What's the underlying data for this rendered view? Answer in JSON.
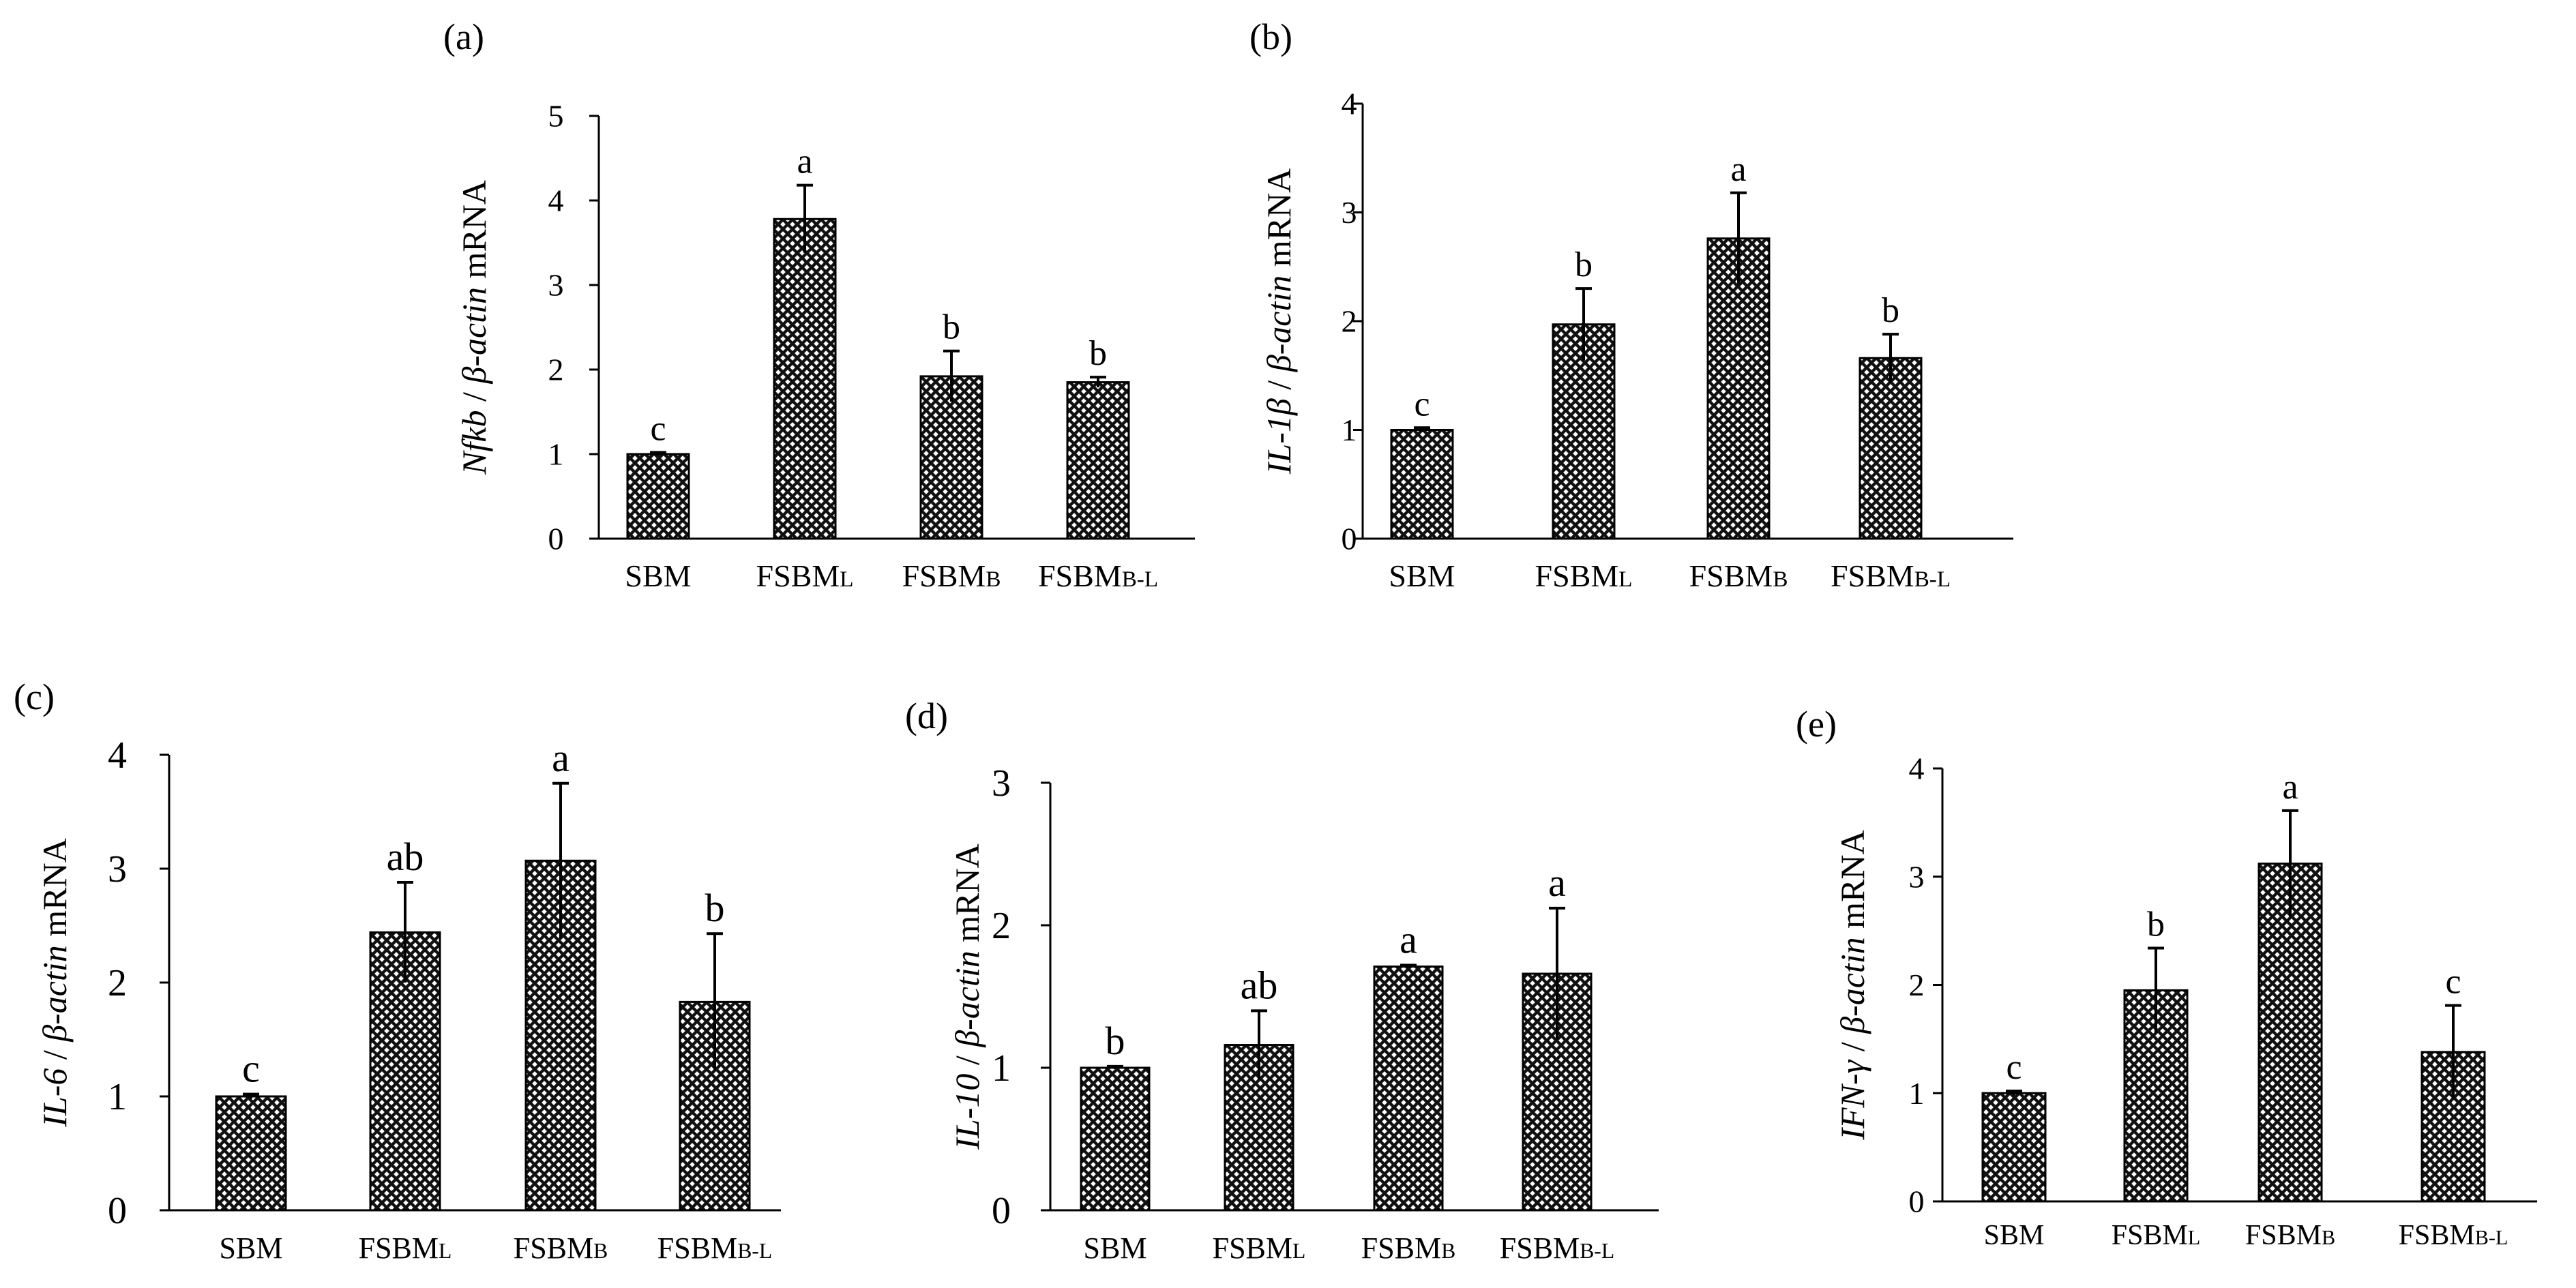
{
  "figure_labels": [
    "(a)",
    "(b)",
    "(c)",
    "(d)",
    "(e)"
  ],
  "chart_data": [
    {
      "type": "bar",
      "panel": "(a)",
      "title": "",
      "ylabel_parts": [
        {
          "text": "Nfkb",
          "italic": true
        },
        {
          "text": " / ",
          "italic": false
        },
        {
          "text": "β-actin",
          "italic": true
        },
        {
          "text": " mRNA",
          "italic": false
        }
      ],
      "xlabel": "",
      "categories": [
        {
          "main": "SBM",
          "sub": ""
        },
        {
          "main": "FSBM",
          "sub": "L"
        },
        {
          "main": "FSBM",
          "sub": "B"
        },
        {
          "main": "FSBM",
          "sub": "B-L"
        }
      ],
      "values": [
        1.0,
        3.78,
        1.92,
        1.85
      ],
      "errors": [
        0.02,
        0.4,
        0.3,
        0.06
      ],
      "letters": [
        "c",
        "a",
        "b",
        "b"
      ],
      "ylim": [
        0,
        5
      ],
      "yticks": [
        0,
        1,
        2,
        3,
        4,
        5
      ],
      "grid": false
    },
    {
      "type": "bar",
      "panel": "(b)",
      "title": "",
      "ylabel_parts": [
        {
          "text": "IL-1β",
          "italic": true
        },
        {
          "text": " / ",
          "italic": false
        },
        {
          "text": "β-actin",
          "italic": true
        },
        {
          "text": " mRNA",
          "italic": false
        }
      ],
      "xlabel": "",
      "categories": [
        {
          "main": "SBM",
          "sub": ""
        },
        {
          "main": "FSBM",
          "sub": "L"
        },
        {
          "main": "FSBM",
          "sub": "B"
        },
        {
          "main": "FSBM",
          "sub": "B-L"
        }
      ],
      "values": [
        1.0,
        1.97,
        2.76,
        1.66
      ],
      "errors": [
        0.02,
        0.33,
        0.42,
        0.22
      ],
      "letters": [
        "c",
        "b",
        "a",
        "b"
      ],
      "ylim": [
        0,
        4
      ],
      "yticks": [
        0,
        1,
        2,
        3,
        4
      ],
      "grid": false
    },
    {
      "type": "bar",
      "panel": "(c)",
      "title": "",
      "ylabel_parts": [
        {
          "text": "IL-6",
          "italic": true
        },
        {
          "text": " / ",
          "italic": false
        },
        {
          "text": "β-actin",
          "italic": true
        },
        {
          "text": " mRNA",
          "italic": false
        }
      ],
      "xlabel": "",
      "categories": [
        {
          "main": "SBM",
          "sub": ""
        },
        {
          "main": "FSBM",
          "sub": "L"
        },
        {
          "main": "FSBM",
          "sub": "B"
        },
        {
          "main": "FSBM",
          "sub": "B-L"
        }
      ],
      "values": [
        1.0,
        2.44,
        3.07,
        1.83
      ],
      "errors": [
        0.02,
        0.44,
        0.68,
        0.6
      ],
      "letters": [
        "c",
        "ab",
        "a",
        "b"
      ],
      "ylim": [
        0,
        4
      ],
      "yticks": [
        0,
        1,
        2,
        3,
        4
      ],
      "grid": false
    },
    {
      "type": "bar",
      "panel": "(d)",
      "title": "",
      "ylabel_parts": [
        {
          "text": "IL-10",
          "italic": true
        },
        {
          "text": " / ",
          "italic": false
        },
        {
          "text": "β-actin",
          "italic": true
        },
        {
          "text": " mRNA",
          "italic": false
        }
      ],
      "xlabel": "",
      "categories": [
        {
          "main": "SBM",
          "sub": ""
        },
        {
          "main": "FSBM",
          "sub": "L"
        },
        {
          "main": "FSBM",
          "sub": "B"
        },
        {
          "main": "FSBM",
          "sub": "B-L"
        }
      ],
      "values": [
        1.0,
        1.16,
        1.71,
        1.66
      ],
      "errors": [
        0.01,
        0.24,
        0.01,
        0.46
      ],
      "letters": [
        "b",
        "ab",
        "a",
        "a"
      ],
      "ylim": [
        0,
        3
      ],
      "yticks": [
        0,
        1,
        2,
        3
      ],
      "grid": false
    },
    {
      "type": "bar",
      "panel": "(e)",
      "title": "",
      "ylabel_parts": [
        {
          "text": "IFN-γ",
          "italic": true
        },
        {
          "text": " / ",
          "italic": false
        },
        {
          "text": "β-actin",
          "italic": true
        },
        {
          "text": " mRNA",
          "italic": false
        }
      ],
      "xlabel": "",
      "categories": [
        {
          "main": "SBM",
          "sub": ""
        },
        {
          "main": "FSBM",
          "sub": "L"
        },
        {
          "main": "FSBM",
          "sub": "B"
        },
        {
          "main": "FSBM",
          "sub": "B-L"
        }
      ],
      "values": [
        1.0,
        1.95,
        3.12,
        1.38
      ],
      "errors": [
        0.02,
        0.39,
        0.49,
        0.43
      ],
      "letters": [
        "c",
        "b",
        "a",
        "c"
      ],
      "ylim": [
        0,
        4
      ],
      "yticks": [
        0,
        1,
        2,
        3,
        4
      ],
      "grid": false
    }
  ]
}
